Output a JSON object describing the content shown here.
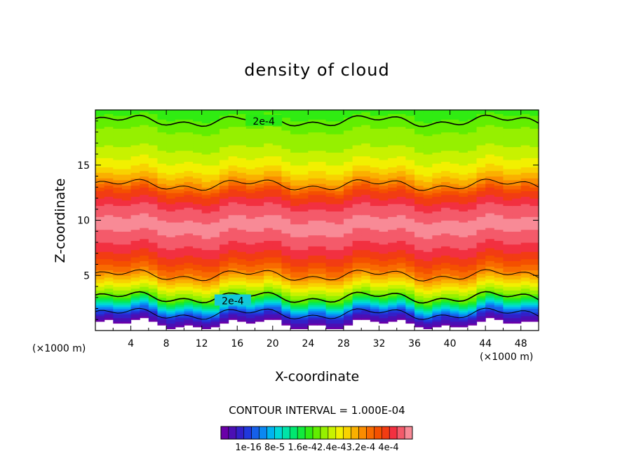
{
  "chart_data": {
    "type": "heatmap",
    "title": "density of cloud",
    "xlabel": "X-coordinate",
    "ylabel": "Z-coordinate",
    "x_unit": "(×1000 m)",
    "y_unit": "(×1000 m)",
    "xlim": [
      0,
      50
    ],
    "ylim": [
      0,
      20
    ],
    "x_ticks": [
      4,
      8,
      12,
      16,
      20,
      24,
      28,
      32,
      36,
      40,
      44,
      48
    ],
    "y_ticks": [
      5,
      10,
      15
    ],
    "contour_interval_text": "CONTOUR INTERVAL = 1.000E-04",
    "contour_labels": [
      "2e-4",
      "2e-4"
    ],
    "colorbar_labels_text": "1e-16 8e-5 1.6e-42.4e-43.2e-4 4e-4",
    "colorbar_colors": [
      "#6a00a8",
      "#4b0fb4",
      "#3220c8",
      "#2038dc",
      "#1660ea",
      "#0b88f2",
      "#00b4f0",
      "#00d8d8",
      "#00e4a8",
      "#00e870",
      "#12ea3c",
      "#30ec12",
      "#62ee00",
      "#96f000",
      "#c8f200",
      "#f2f000",
      "#f8d200",
      "#fab000",
      "#fa8c00",
      "#f86a00",
      "#f45000",
      "#f23c12",
      "#f23040",
      "#f45a6a",
      "#f88a96"
    ],
    "vertical_profile": [
      {
        "z": 0.6,
        "value": 0.0
      },
      {
        "z": 1.2,
        "value": 3e-05
      },
      {
        "z": 1.8,
        "value": 8e-05
      },
      {
        "z": 2.5,
        "value": 0.00015
      },
      {
        "z": 3.0,
        "value": 0.0002
      },
      {
        "z": 4.0,
        "value": 0.00025
      },
      {
        "z": 5.0,
        "value": 0.0003
      },
      {
        "z": 6.5,
        "value": 0.00035
      },
      {
        "z": 8.0,
        "value": 0.00038
      },
      {
        "z": 9.5,
        "value": 0.0004
      },
      {
        "z": 11.0,
        "value": 0.00038
      },
      {
        "z": 12.5,
        "value": 0.00034
      },
      {
        "z": 13.3,
        "value": 0.0003
      },
      {
        "z": 14.5,
        "value": 0.00026
      },
      {
        "z": 16.0,
        "value": 0.00023
      },
      {
        "z": 18.0,
        "value": 0.00021
      },
      {
        "z": 19.0,
        "value": 0.0002
      },
      {
        "z": 19.8,
        "value": 0.00018
      }
    ],
    "contour_lines_z": [
      1.5,
      3.0,
      5.0,
      13.2,
      19.0
    ]
  }
}
